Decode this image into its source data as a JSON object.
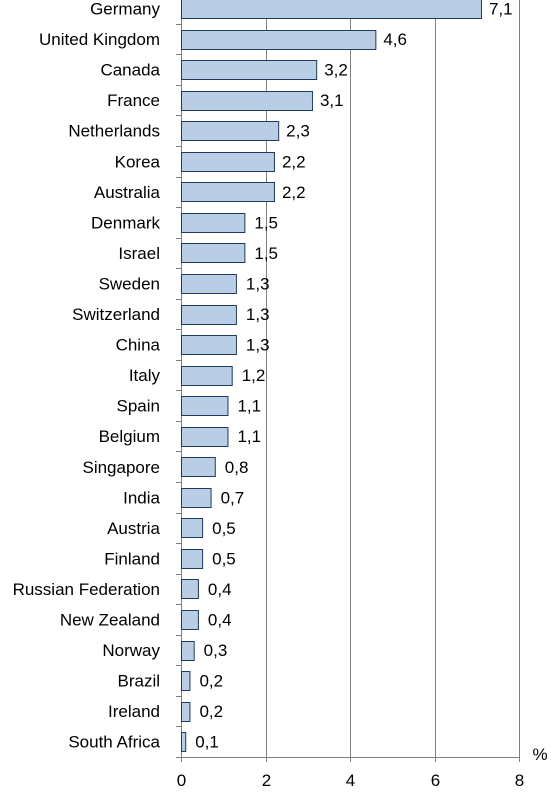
{
  "chart_data": {
    "type": "bar",
    "orientation": "horizontal",
    "categories": [
      "Germany",
      "United Kingdom",
      "Canada",
      "France",
      "Netherlands",
      "Korea",
      "Australia",
      "Denmark",
      "Israel",
      "Sweden",
      "Switzerland",
      "China",
      "Italy",
      "Spain",
      "Belgium",
      "Singapore",
      "India",
      "Austria",
      "Finland",
      "Russian Federation",
      "New Zealand",
      "Norway",
      "Brazil",
      "Ireland",
      "South Africa"
    ],
    "values": [
      7.1,
      4.6,
      3.2,
      3.1,
      2.3,
      2.2,
      2.2,
      1.5,
      1.5,
      1.3,
      1.3,
      1.3,
      1.2,
      1.1,
      1.1,
      0.8,
      0.7,
      0.5,
      0.5,
      0.4,
      0.4,
      0.3,
      0.2,
      0.2,
      0.1
    ],
    "value_labels": [
      "7,1",
      "4,6",
      "3,2",
      "3,1",
      "2,3",
      "2,2",
      "2,2",
      "1,5",
      "1,5",
      "1,3",
      "1,3",
      "1,3",
      "1,2",
      "1,1",
      "1,1",
      "0,8",
      "0,7",
      "0,5",
      "0,5",
      "0,4",
      "0,4",
      "0,3",
      "0,2",
      "0,2",
      "0,1"
    ],
    "x_ticks": [
      "0",
      "2",
      "4",
      "6",
      "8"
    ],
    "xlim": [
      0,
      8
    ],
    "x_unit": "%",
    "grid": "vertical",
    "legend": "none",
    "colors": {
      "bar_fill": "#b9cde5",
      "bar_stroke": "#1f3b60",
      "grid": "#808080",
      "axis": "#808080"
    }
  }
}
